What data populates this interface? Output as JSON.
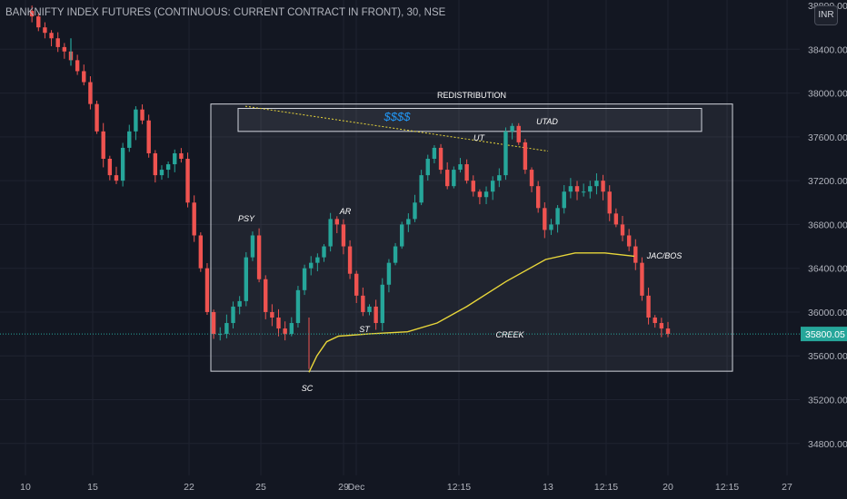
{
  "header": {
    "title": "BANKNIFTY INDEX FUTURES (CONTINUOUS: CURRENT CONTRACT IN FRONT), 30, NSE",
    "currency_badge": "INR"
  },
  "colors": {
    "background": "#131722",
    "grid": "#1f2330",
    "up": "#26a69a",
    "down": "#ef5350",
    "annotation_line": "#e8d63a",
    "price_line": "#26a69a",
    "box": "#d1d4dc",
    "dollar_text": "#2196f3"
  },
  "chart_data": {
    "type": "candlestick",
    "title": "BANKNIFTY INDEX FUTURES (CONTINUOUS: CURRENT CONTRACT IN FRONT), 30, NSE",
    "ylim": [
      34500,
      38850
    ],
    "y_ticks": [
      "38400.00",
      "38000.00",
      "37600.00",
      "37200.00",
      "36800.00",
      "36400.00",
      "36000.00",
      "35600.00",
      "35200.00",
      "34800.00"
    ],
    "y_ticks_partial_top": "38800.00",
    "x_ticks": [
      "10",
      "15",
      "22",
      "25",
      "29",
      "Dec",
      "12:15",
      "13",
      "12:15",
      "20",
      "12:15",
      "27"
    ],
    "x_tick_positions_index": [
      0,
      1,
      2,
      3,
      4,
      5,
      6,
      7,
      8,
      9,
      10,
      11
    ],
    "current_price": "35800.05",
    "annotations": [
      "REDISTRIBUTION",
      "$$$$",
      "UT",
      "UTAD",
      "PSY",
      "AR",
      "SC",
      "ST",
      "CREEK",
      "JAC/BOS"
    ],
    "price_path": [
      [
        0,
        38750
      ],
      [
        4,
        38700
      ],
      [
        8,
        38600
      ],
      [
        12,
        38550
      ],
      [
        16,
        38500
      ],
      [
        20,
        38420
      ],
      [
        24,
        38380
      ],
      [
        28,
        38300
      ],
      [
        32,
        38200
      ],
      [
        36,
        38100
      ],
      [
        40,
        37900
      ],
      [
        44,
        37650
      ],
      [
        48,
        37400
      ],
      [
        52,
        37250
      ],
      [
        56,
        37200
      ],
      [
        60,
        37500
      ],
      [
        64,
        37650
      ],
      [
        68,
        37850
      ],
      [
        72,
        37750
      ],
      [
        76,
        37450
      ],
      [
        80,
        37250
      ],
      [
        84,
        37300
      ],
      [
        88,
        37350
      ],
      [
        92,
        37450
      ],
      [
        96,
        37400
      ],
      [
        100,
        37000
      ],
      [
        104,
        36700
      ],
      [
        108,
        36400
      ],
      [
        112,
        36000
      ],
      [
        116,
        35800
      ],
      [
        120,
        35800
      ],
      [
        124,
        35900
      ],
      [
        128,
        36050
      ],
      [
        132,
        36100
      ],
      [
        136,
        36500
      ],
      [
        140,
        36700
      ],
      [
        144,
        36300
      ],
      [
        148,
        36000
      ],
      [
        152,
        35950
      ],
      [
        156,
        35850
      ],
      [
        160,
        35800
      ],
      [
        164,
        35900
      ],
      [
        168,
        36200
      ],
      [
        172,
        36400
      ],
      [
        176,
        36450
      ],
      [
        180,
        36500
      ],
      [
        184,
        36600
      ],
      [
        188,
        36850
      ],
      [
        192,
        36800
      ],
      [
        196,
        36600
      ],
      [
        200,
        36350
      ],
      [
        204,
        36150
      ],
      [
        208,
        36000
      ],
      [
        212,
        36050
      ],
      [
        216,
        35900
      ],
      [
        220,
        36250
      ],
      [
        224,
        36450
      ],
      [
        228,
        36600
      ],
      [
        232,
        36800
      ],
      [
        236,
        36850
      ],
      [
        240,
        37000
      ],
      [
        244,
        37250
      ],
      [
        248,
        37400
      ],
      [
        252,
        37500
      ],
      [
        256,
        37300
      ],
      [
        260,
        37150
      ],
      [
        264,
        37300
      ],
      [
        268,
        37350
      ],
      [
        272,
        37200
      ],
      [
        276,
        37100
      ],
      [
        280,
        37050
      ],
      [
        284,
        37100
      ],
      [
        288,
        37200
      ],
      [
        292,
        37250
      ],
      [
        296,
        37650
      ],
      [
        300,
        37700
      ],
      [
        304,
        37550
      ],
      [
        308,
        37300
      ],
      [
        312,
        37150
      ],
      [
        316,
        36950
      ],
      [
        320,
        36750
      ],
      [
        324,
        36800
      ],
      [
        328,
        36950
      ],
      [
        332,
        37100
      ],
      [
        336,
        37150
      ],
      [
        340,
        37100
      ],
      [
        344,
        37100
      ],
      [
        348,
        37150
      ],
      [
        352,
        37200
      ],
      [
        356,
        37100
      ],
      [
        360,
        36900
      ],
      [
        364,
        36800
      ],
      [
        368,
        36700
      ],
      [
        372,
        36600
      ],
      [
        376,
        36450
      ],
      [
        380,
        36150
      ],
      [
        384,
        35950
      ],
      [
        388,
        35900
      ],
      [
        392,
        35850
      ],
      [
        396,
        35800
      ]
    ],
    "accumulation_curve": [
      [
        0,
        35450
      ],
      [
        8,
        35600
      ],
      [
        18,
        35730
      ],
      [
        30,
        35780
      ],
      [
        60,
        35800
      ],
      [
        100,
        35820
      ],
      [
        130,
        35900
      ],
      [
        160,
        36050
      ],
      [
        200,
        36280
      ],
      [
        240,
        36480
      ],
      [
        270,
        36540
      ],
      [
        300,
        36540
      ],
      [
        330,
        36510
      ]
    ],
    "box": {
      "y_top": 37900,
      "y_bottom": 35460
    },
    "liquidity_box": {
      "y_top": 37860,
      "y_bottom": 37650
    },
    "ut_line": {
      "y_start": 37880,
      "y_end": 37470
    }
  }
}
